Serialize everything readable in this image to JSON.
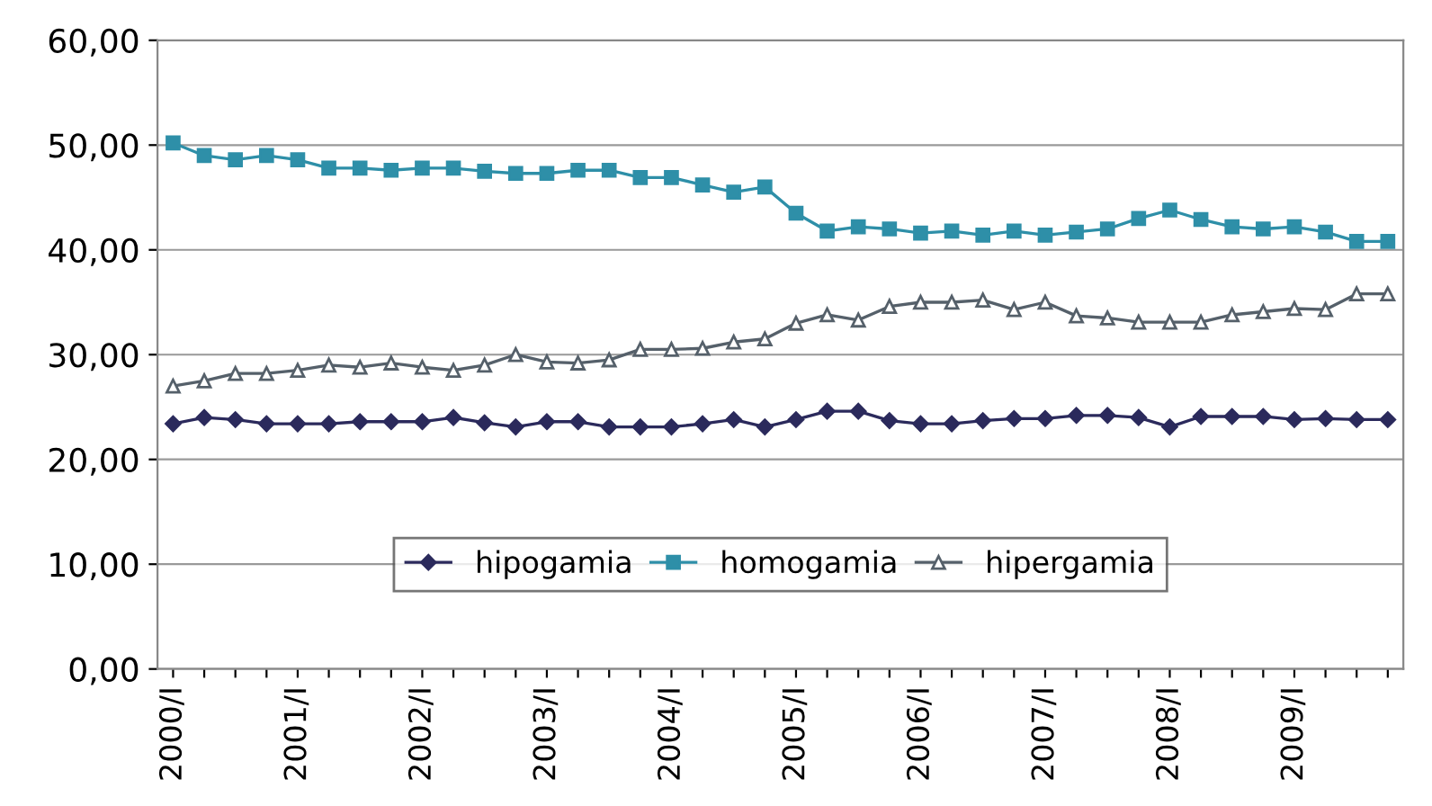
{
  "chart_data": {
    "type": "line",
    "categories": [
      "2000/I",
      null,
      null,
      null,
      "2001/I",
      null,
      null,
      null,
      "2002/I",
      null,
      null,
      null,
      "2003/I",
      null,
      null,
      null,
      "2004/I",
      null,
      null,
      null,
      "2005/I",
      null,
      null,
      null,
      "2006/I",
      null,
      null,
      null,
      "2007/I",
      null,
      null,
      null,
      "2008/I",
      null,
      null,
      null,
      "2009/I",
      null,
      null,
      null
    ],
    "series": [
      {
        "name": "hipogamia",
        "color": "#2b2a5c",
        "marker": "diamond",
        "values": [
          23.4,
          24,
          23.8,
          23.4,
          23.4,
          23.4,
          23.6,
          23.6,
          23.6,
          24,
          23.5,
          23.1,
          23.6,
          23.6,
          23.1,
          23.1,
          23.1,
          23.4,
          23.8,
          23.1,
          23.8,
          24.6,
          24.6,
          23.7,
          23.4,
          23.4,
          23.7,
          23.9,
          23.9,
          24.2,
          24.2,
          24,
          23.1,
          24.1,
          24.1,
          24.1,
          23.8,
          23.9,
          23.8,
          23.8
        ]
      },
      {
        "name": "homogamia",
        "color": "#2e8fa8",
        "marker": "square",
        "values": [
          50.2,
          49,
          48.6,
          49,
          48.6,
          47.8,
          47.8,
          47.6,
          47.8,
          47.8,
          47.5,
          47.3,
          47.3,
          47.6,
          47.6,
          46.9,
          46.9,
          46.2,
          45.5,
          46,
          43.5,
          41.8,
          42.2,
          42,
          41.6,
          41.8,
          41.4,
          41.8,
          41.4,
          41.7,
          42,
          43,
          43.8,
          42.9,
          42.2,
          42,
          42.2,
          41.7,
          40.8,
          40.8
        ]
      },
      {
        "name": "hipergamia",
        "color": "#55606a",
        "marker": "triangle",
        "values": [
          27,
          27.5,
          28.2,
          28.2,
          28.5,
          29,
          28.8,
          29.2,
          28.8,
          28.5,
          29,
          30,
          29.3,
          29.2,
          29.5,
          30.5,
          30.5,
          30.6,
          31.2,
          31.5,
          33,
          33.8,
          33.3,
          34.6,
          35,
          35,
          35.2,
          34.3,
          35,
          33.7,
          33.5,
          33.1,
          33.1,
          33.1,
          33.8,
          34.1,
          34.4,
          34.3,
          35.8,
          35.8
        ]
      }
    ],
    "ylim": [
      0,
      60
    ],
    "yticks": [
      {
        "value": 0,
        "label": "0,00"
      },
      {
        "value": 10,
        "label": "10,00"
      },
      {
        "value": 20,
        "label": "20,00"
      },
      {
        "value": 30,
        "label": "30,00"
      },
      {
        "value": 40,
        "label": "40,00"
      },
      {
        "value": 50,
        "label": "50,00"
      },
      {
        "value": 60,
        "label": "60,00"
      }
    ],
    "grid": "y",
    "legend": "bottom",
    "line_style": "solid"
  }
}
